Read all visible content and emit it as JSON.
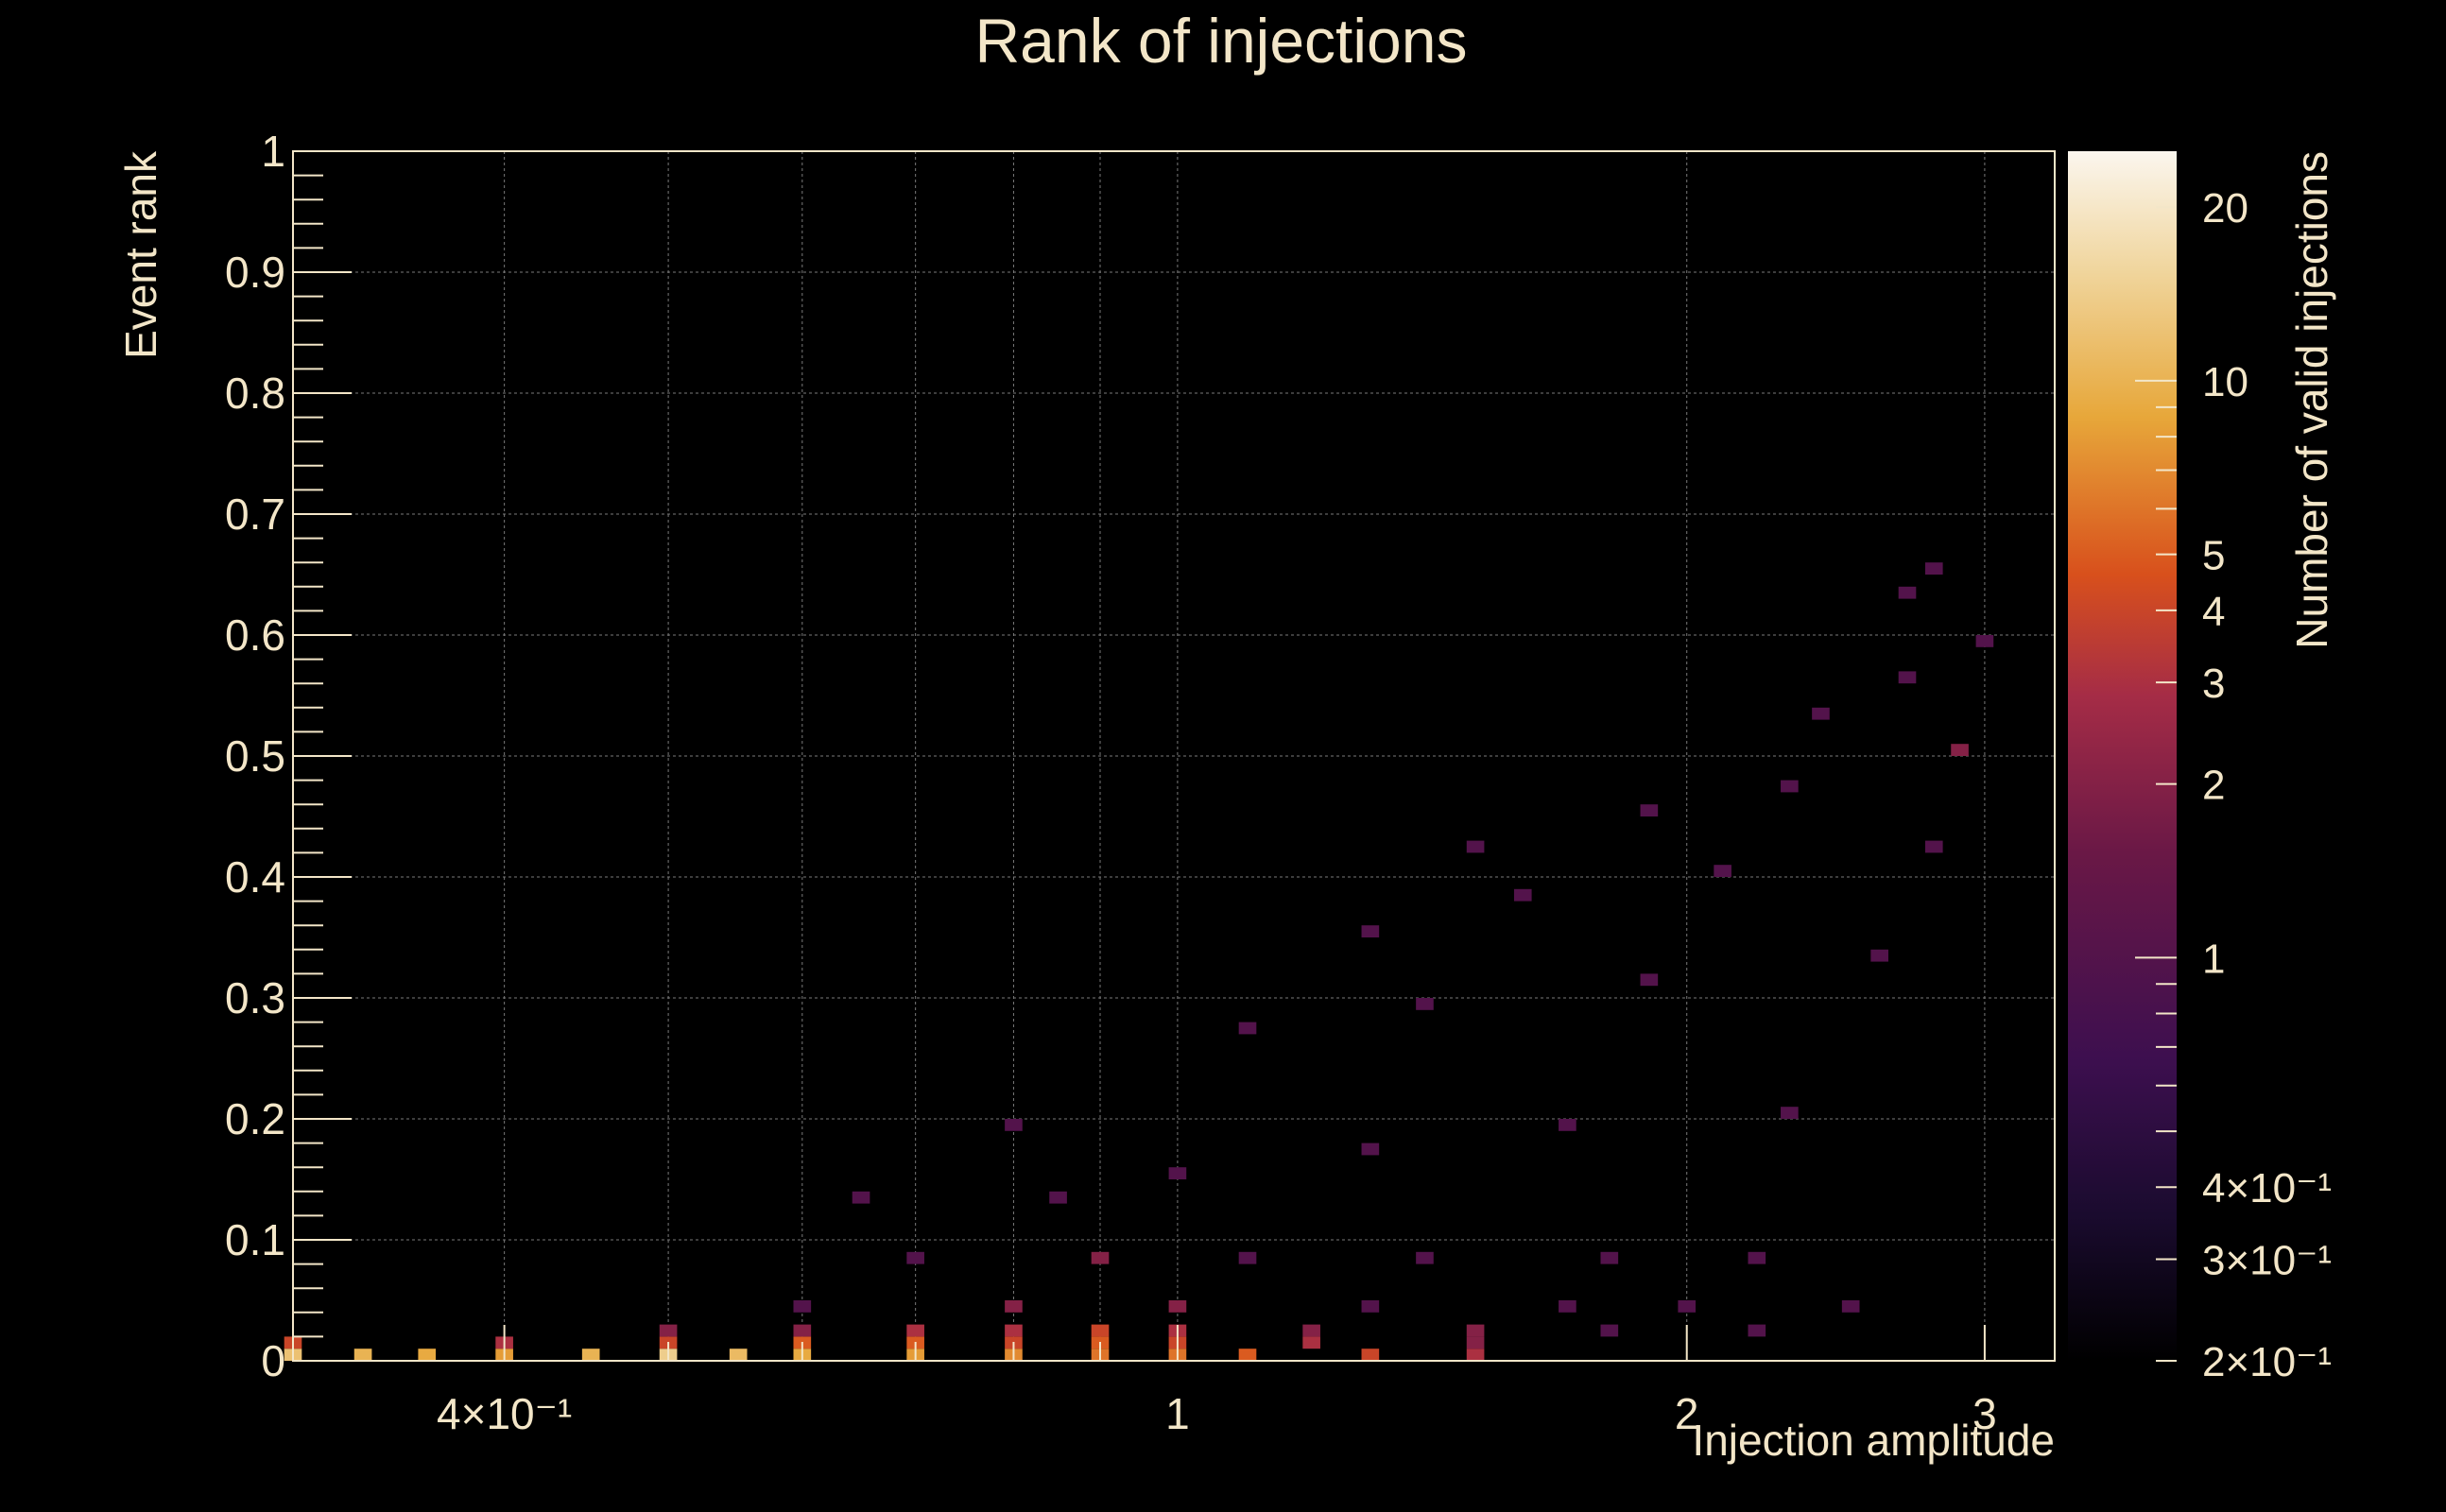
{
  "chart_data": {
    "type": "heatmap",
    "title": "Rank of injections",
    "xlabel": "Injection amplitude",
    "ylabel": "Event rank",
    "zlabel": "Number of valid injections",
    "x_scale": "log",
    "z_scale": "log",
    "xlim": [
      0.3,
      3.3
    ],
    "ylim": [
      0,
      1
    ],
    "zlim": [
      0.2,
      25
    ],
    "x_tick_labels": [
      {
        "value": 0.4,
        "label": "4×10⁻¹"
      },
      {
        "value": 1,
        "label": "1"
      },
      {
        "value": 2,
        "label": "2"
      },
      {
        "value": 3,
        "label": "3"
      }
    ],
    "y_tick_labels": [
      "0",
      "0.1",
      "0.2",
      "0.3",
      "0.4",
      "0.5",
      "0.6",
      "0.7",
      "0.8",
      "0.9",
      "1"
    ],
    "z_tick_labels": [
      {
        "value": 0.2,
        "label": "2×10⁻¹"
      },
      {
        "value": 0.3,
        "label": "3×10⁻¹"
      },
      {
        "value": 0.4,
        "label": "4×10⁻¹"
      },
      {
        "value": 1,
        "label": "1"
      },
      {
        "value": 2,
        "label": "2"
      },
      {
        "value": 3,
        "label": "3"
      },
      {
        "value": 4,
        "label": "4"
      },
      {
        "value": 5,
        "label": "5"
      },
      {
        "value": 10,
        "label": "10"
      },
      {
        "value": 20,
        "label": "20"
      }
    ],
    "grid": true,
    "colormap": [
      "#000000",
      "#1a0b2e",
      "#3d0f4f",
      "#6a1846",
      "#a52c46",
      "#d8501c",
      "#e7a73a",
      "#f0d59c",
      "#fbf6ee"
    ],
    "x_bins": 100,
    "y_bins": 100,
    "cells": [
      [
        0.3,
        0.005,
        12
      ],
      [
        0.33,
        0.005,
        10
      ],
      [
        0.36,
        0.005,
        9
      ],
      [
        0.4,
        0.005,
        8
      ],
      [
        0.45,
        0.005,
        10
      ],
      [
        0.5,
        0.005,
        14
      ],
      [
        0.55,
        0.005,
        11
      ],
      [
        0.6,
        0.005,
        9
      ],
      [
        0.7,
        0.005,
        8
      ],
      [
        0.8,
        0.005,
        7
      ],
      [
        0.9,
        0.005,
        6
      ],
      [
        1.0,
        0.005,
        6
      ],
      [
        1.1,
        0.005,
        5
      ],
      [
        1.3,
        0.005,
        4
      ],
      [
        1.5,
        0.005,
        3
      ],
      [
        0.3,
        0.015,
        4
      ],
      [
        0.4,
        0.015,
        3
      ],
      [
        0.5,
        0.015,
        4
      ],
      [
        0.6,
        0.015,
        5
      ],
      [
        0.7,
        0.015,
        5
      ],
      [
        0.8,
        0.015,
        4
      ],
      [
        0.9,
        0.015,
        5
      ],
      [
        1.0,
        0.015,
        4
      ],
      [
        1.2,
        0.015,
        3
      ],
      [
        1.5,
        0.015,
        2
      ],
      [
        0.5,
        0.025,
        2
      ],
      [
        0.6,
        0.025,
        2
      ],
      [
        0.7,
        0.025,
        3
      ],
      [
        0.8,
        0.025,
        3
      ],
      [
        0.9,
        0.025,
        4
      ],
      [
        1.0,
        0.025,
        3
      ],
      [
        1.2,
        0.025,
        2
      ],
      [
        1.5,
        0.025,
        2
      ],
      [
        1.8,
        0.025,
        1
      ],
      [
        2.2,
        0.025,
        1
      ],
      [
        0.6,
        0.045,
        1
      ],
      [
        0.8,
        0.045,
        2
      ],
      [
        1.0,
        0.045,
        2
      ],
      [
        1.3,
        0.045,
        1
      ],
      [
        1.7,
        0.045,
        1
      ],
      [
        2.0,
        0.045,
        1
      ],
      [
        2.5,
        0.045,
        1
      ],
      [
        0.7,
        0.085,
        1
      ],
      [
        0.9,
        0.085,
        2
      ],
      [
        1.1,
        0.085,
        1
      ],
      [
        1.4,
        0.085,
        1
      ],
      [
        1.8,
        0.085,
        1
      ],
      [
        2.2,
        0.085,
        1
      ],
      [
        0.65,
        0.135,
        1
      ],
      [
        0.85,
        0.135,
        1
      ],
      [
        1.0,
        0.155,
        1
      ],
      [
        1.3,
        0.175,
        1
      ],
      [
        1.7,
        0.195,
        1
      ],
      [
        2.3,
        0.205,
        1
      ],
      [
        0.8,
        0.195,
        1
      ],
      [
        1.1,
        0.275,
        1
      ],
      [
        1.4,
        0.295,
        1
      ],
      [
        1.9,
        0.315,
        1
      ],
      [
        2.6,
        0.335,
        1
      ],
      [
        1.3,
        0.355,
        1
      ],
      [
        1.6,
        0.385,
        1
      ],
      [
        2.1,
        0.405,
        1
      ],
      [
        2.8,
        0.425,
        1
      ],
      [
        1.5,
        0.425,
        1
      ],
      [
        1.9,
        0.455,
        1
      ],
      [
        2.3,
        0.475,
        1
      ],
      [
        2.9,
        0.505,
        2
      ],
      [
        2.4,
        0.535,
        1
      ],
      [
        2.7,
        0.565,
        1
      ],
      [
        3.0,
        0.595,
        1
      ],
      [
        2.7,
        0.635,
        1
      ],
      [
        2.8,
        0.655,
        1
      ]
    ]
  }
}
